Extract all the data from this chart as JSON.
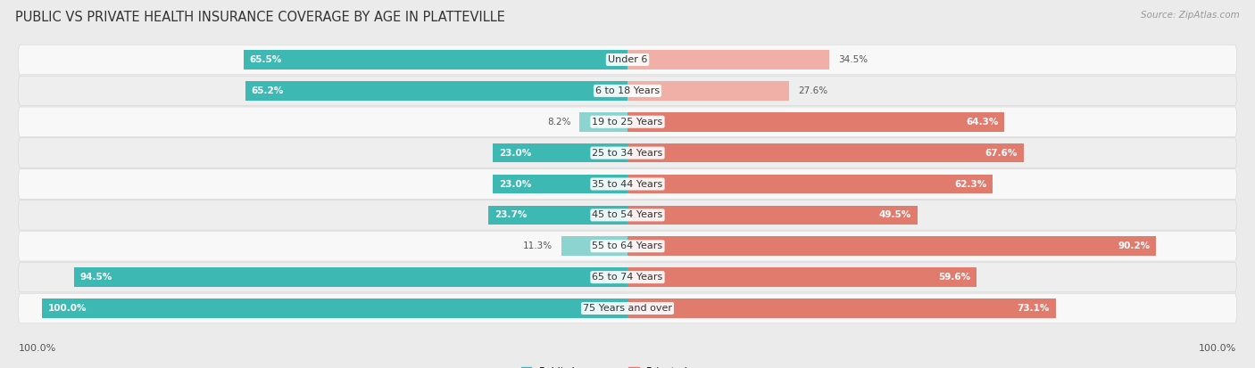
{
  "title": "PUBLIC VS PRIVATE HEALTH INSURANCE COVERAGE BY AGE IN PLATTEVILLE",
  "source": "Source: ZipAtlas.com",
  "categories": [
    "Under 6",
    "6 to 18 Years",
    "19 to 25 Years",
    "25 to 34 Years",
    "35 to 44 Years",
    "45 to 54 Years",
    "55 to 64 Years",
    "65 to 74 Years",
    "75 Years and over"
  ],
  "public": [
    65.5,
    65.2,
    8.2,
    23.0,
    23.0,
    23.7,
    11.3,
    94.5,
    100.0
  ],
  "private": [
    34.5,
    27.6,
    64.3,
    67.6,
    62.3,
    49.5,
    90.2,
    59.6,
    73.1
  ],
  "public_color_strong": "#3db8b3",
  "public_color_light": "#8dd4d1",
  "private_color_strong": "#e07b6e",
  "private_color_light": "#f0b0a8",
  "bg_color": "#ebebeb",
  "row_bg_white": "#f8f8f8",
  "row_bg_gray": "#eeeeee",
  "title_fontsize": 10.5,
  "label_fontsize": 8,
  "category_fontsize": 8,
  "value_fontsize": 7.5,
  "legend_fontsize": 8,
  "source_fontsize": 7.5,
  "public_threshold": 20,
  "private_threshold": 40
}
